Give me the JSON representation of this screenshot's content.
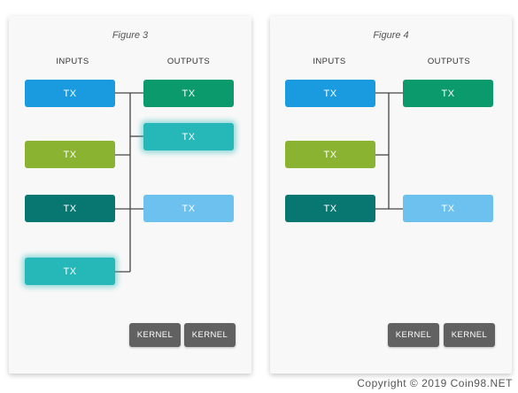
{
  "colors": {
    "blue": "#1a9be0",
    "green_dark": "#0b9a6b",
    "teal": "#26b8b8",
    "olive": "#8ab332",
    "teal_dark": "#087772",
    "light_blue": "#6cc1ef",
    "kernel": "#616161",
    "wire": "#444444"
  },
  "figure3": {
    "title": "Figure 3",
    "inputs_label": "INPUTS",
    "outputs_label": "OUTPUTS",
    "inputs": [
      {
        "label": "TX",
        "color": "blue"
      },
      {
        "label": "TX",
        "color": "olive"
      },
      {
        "label": "TX",
        "color": "teal_dark"
      },
      {
        "label": "TX",
        "color": "teal",
        "highlighted": true
      }
    ],
    "outputs": [
      {
        "label": "TX",
        "color": "green_dark"
      },
      {
        "label": "TX",
        "color": "teal",
        "highlighted": true
      },
      {
        "label": "TX",
        "color": "light_blue"
      }
    ],
    "kernels": [
      "KERNEL",
      "KERNEL"
    ]
  },
  "figure4": {
    "title": "Figure 4",
    "inputs_label": "INPUTS",
    "outputs_label": "OUTPUTS",
    "inputs": [
      {
        "label": "TX",
        "color": "blue"
      },
      {
        "label": "TX",
        "color": "olive"
      },
      {
        "label": "TX",
        "color": "teal_dark"
      }
    ],
    "outputs": [
      {
        "label": "TX",
        "color": "green_dark"
      },
      {
        "label": "TX",
        "color": "light_blue"
      }
    ],
    "kernels": [
      "KERNEL",
      "KERNEL"
    ]
  },
  "copyright": "Copyright © 2019 Coin98.NET"
}
